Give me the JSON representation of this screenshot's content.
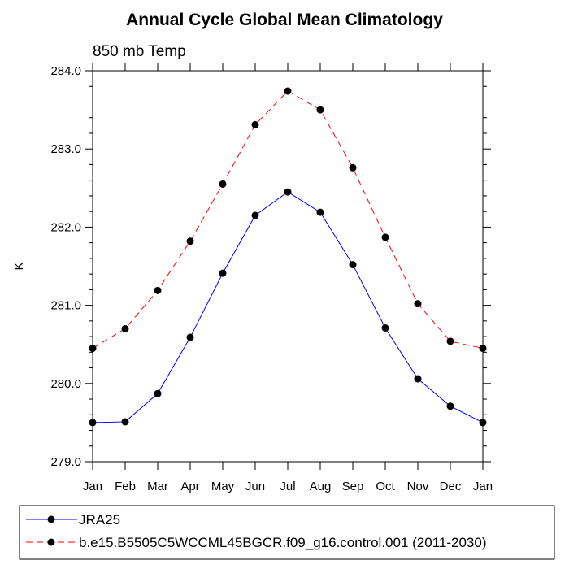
{
  "chart_data": {
    "type": "line",
    "title": "Annual Cycle Global Mean Climatology",
    "subtitle": "850 mb Temp",
    "xlabel": "",
    "ylabel": "K",
    "categories": [
      "Jan",
      "Feb",
      "Mar",
      "Apr",
      "May",
      "Jun",
      "Jul",
      "Aug",
      "Sep",
      "Oct",
      "Nov",
      "Dec",
      "Jan"
    ],
    "ylim": [
      279.0,
      284.0
    ],
    "yticks": [
      279.0,
      280.0,
      281.0,
      282.0,
      283.0,
      284.0
    ],
    "ytick_labels": [
      "279.0",
      "280.0",
      "281.0",
      "282.0",
      "283.0",
      "284.0"
    ],
    "series": [
      {
        "name": "JRA25",
        "color": "#0000ff",
        "dash": "solid",
        "marker": "filled-circle",
        "values": [
          279.5,
          279.51,
          279.87,
          280.59,
          281.41,
          282.15,
          282.45,
          282.19,
          281.52,
          280.71,
          280.06,
          279.71,
          279.5
        ]
      },
      {
        "name": "b.e15.B5505C5WCCML45BGCR.f09_g16.control.001 (2011-2030)",
        "color": "#ff0000",
        "dash": "dashed",
        "marker": "filled-circle",
        "values": [
          280.45,
          280.7,
          281.19,
          281.82,
          282.55,
          283.31,
          283.74,
          283.5,
          282.76,
          281.87,
          281.02,
          280.54,
          280.45
        ]
      }
    ],
    "legend_position": "bottom"
  }
}
